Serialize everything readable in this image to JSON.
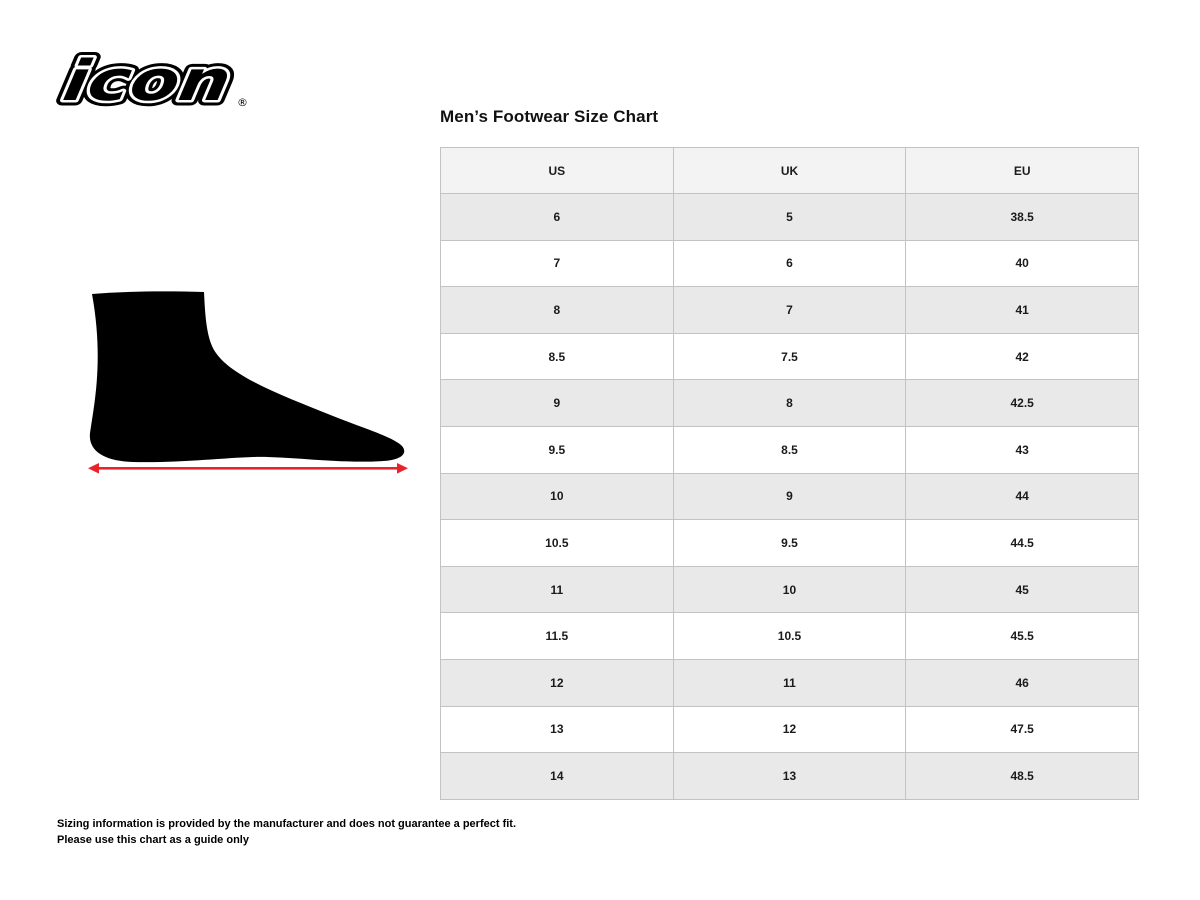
{
  "logo": {
    "brand": "icon",
    "registered": "®"
  },
  "title": "Men’s Footwear Size Chart",
  "table": {
    "columns": [
      "US",
      "UK",
      "EU"
    ],
    "rows": [
      [
        "6",
        "5",
        "38.5"
      ],
      [
        "7",
        "6",
        "40"
      ],
      [
        "8",
        "7",
        "41"
      ],
      [
        "8.5",
        "7.5",
        "42"
      ],
      [
        "9",
        "8",
        "42.5"
      ],
      [
        "9.5",
        "8.5",
        "43"
      ],
      [
        "10",
        "9",
        "44"
      ],
      [
        "10.5",
        "9.5",
        "44.5"
      ],
      [
        "11",
        "10",
        "45"
      ],
      [
        "11.5",
        "10.5",
        "45.5"
      ],
      [
        "12",
        "11",
        "46"
      ],
      [
        "13",
        "12",
        "47.5"
      ],
      [
        "14",
        "13",
        "48.5"
      ]
    ]
  },
  "illustration": {
    "name": "foot-silhouette-with-length-arrow",
    "foot_color": "#000000",
    "arrow_color": "#e8232a"
  },
  "footer": {
    "line1": "Sizing information is provided by the manufacturer and does not guarantee a perfect fit.",
    "line2": "Please use this chart as a guide only"
  },
  "colors": {
    "header_bg": "#f3f3f3",
    "row_alt_bg": "#e9e9e9",
    "row_bg": "#ffffff",
    "border_inner": "#c3c3c3",
    "border_outer": "#9e9e9e",
    "text": "#1b1b1b"
  }
}
